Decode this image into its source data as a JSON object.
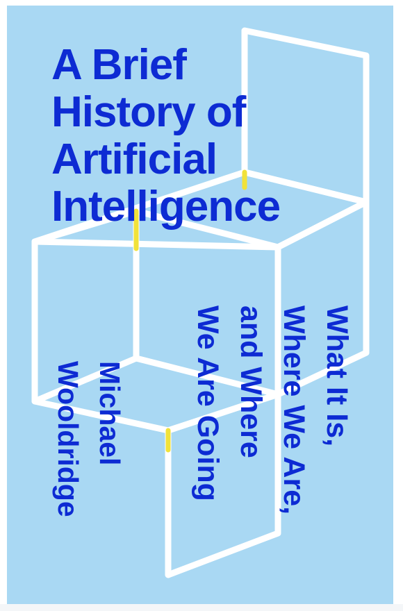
{
  "cover": {
    "background_color": "#a9d8f3",
    "title_color": "#0d2bd3",
    "accent_color": "#f1e23a",
    "title_lines": [
      "A Brief",
      "History of",
      "Artificial",
      "Intelligence"
    ],
    "subtitle_lines": [
      "What It Is,",
      "Where We Are,",
      "and Where",
      "We Are Going"
    ],
    "author_lines": [
      "Michael",
      "Wooldridge"
    ]
  }
}
